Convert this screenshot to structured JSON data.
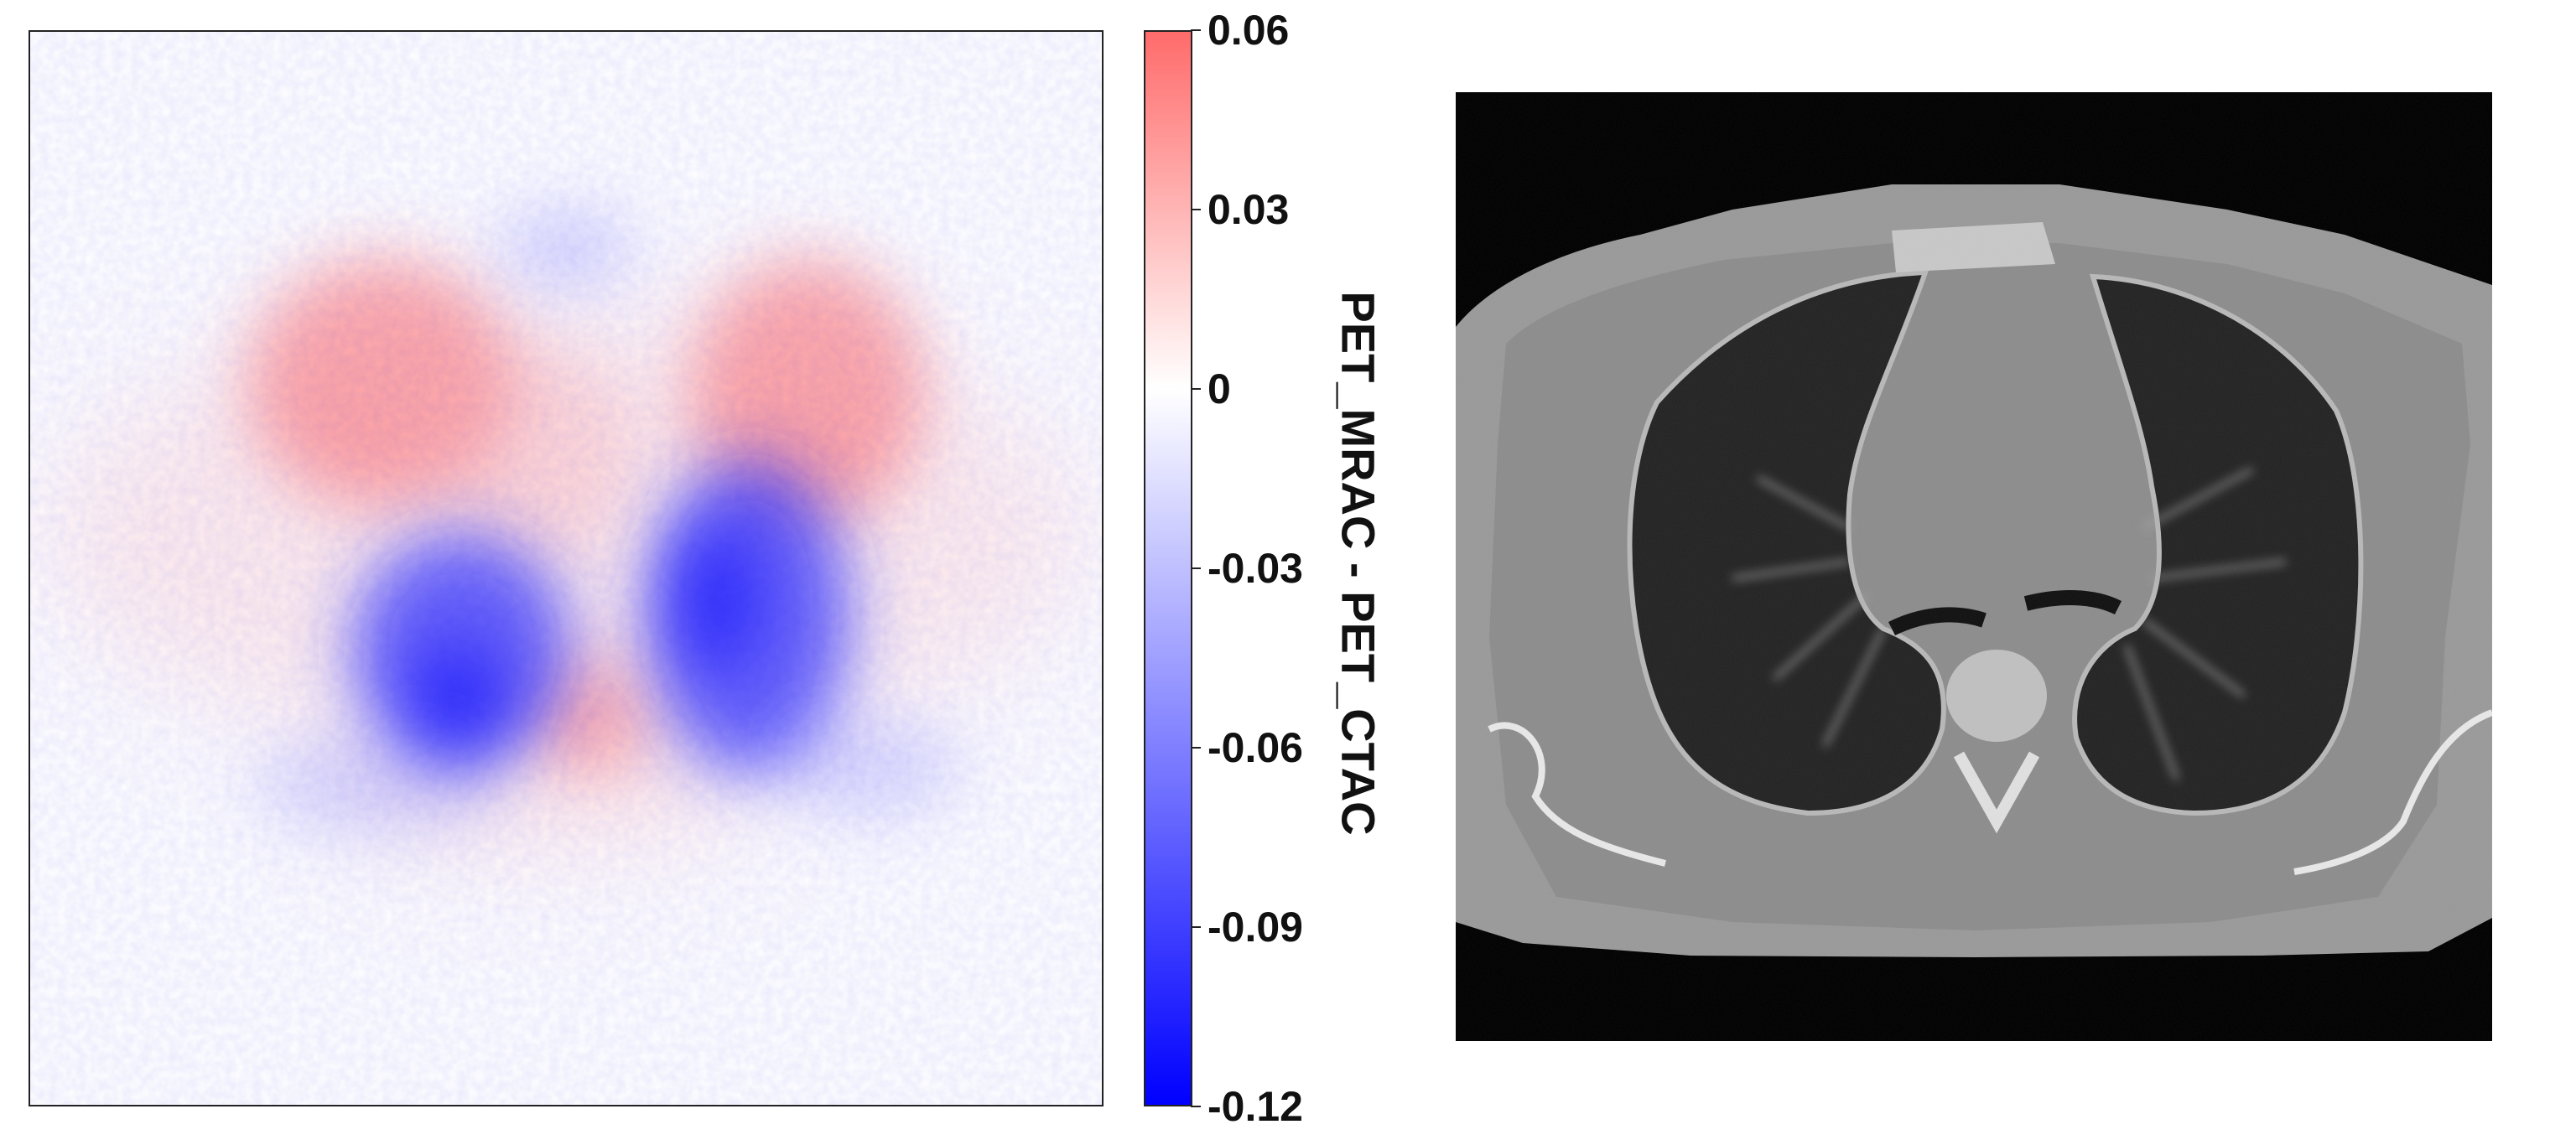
{
  "chart_data": {
    "type": "heatmap",
    "colormap": "blue-white-red",
    "colors": {
      "min": "#0000ff",
      "mid": "#ffffff",
      "max": "#ff6b6b"
    },
    "colorbar": {
      "label": "PET_MRAC - PET_CTAC",
      "range": [
        -0.12,
        0.06
      ],
      "ticks": [
        "0.06",
        "0.03",
        "0",
        "-0.03",
        "-0.06",
        "-0.09",
        "-0.12"
      ],
      "tick_values": [
        0.06,
        0.03,
        0,
        -0.03,
        -0.06,
        -0.09,
        -0.12
      ]
    },
    "panels": [
      {
        "content": "difference-map",
        "colormap": "blue-white-red"
      },
      {
        "content": "ct-slice",
        "colormap": "grayscale"
      }
    ]
  }
}
